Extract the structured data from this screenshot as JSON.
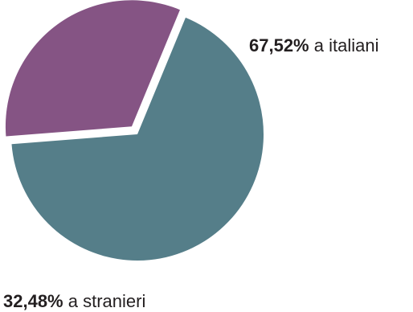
{
  "chart_data": {
    "type": "pie",
    "title": "",
    "slices": [
      {
        "label": "a italiani",
        "value": 67.52,
        "value_text": "67,52%",
        "color": "#557e89",
        "exploded": false
      },
      {
        "label": "a stranieri",
        "value": 32.48,
        "value_text": "32,48%",
        "color": "#855484",
        "exploded": true
      }
    ],
    "legend": "none"
  }
}
